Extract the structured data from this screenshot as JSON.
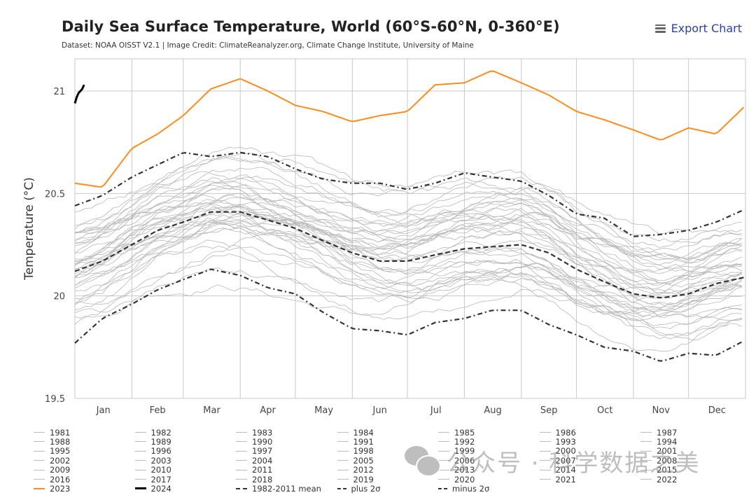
{
  "header": {
    "title": "Daily Sea Surface Temperature, World (60°S-60°N, 0-360°E)",
    "subtitle": "Dataset: NOAA OISST V2.1 | Image Credit: ClimateReanalyzer.org, Climate Change Institute, University of Maine",
    "export_label": "Export Chart",
    "export_icon": "menu-icon"
  },
  "watermark": {
    "icon": "wechat-icon",
    "text": "公众号 · 科学数据之美"
  },
  "chart_data": {
    "type": "line",
    "title": "Daily Sea Surface Temperature, World (60°S-60°N, 0-360°E)",
    "xlabel": "",
    "ylabel": "Temperature (°C)",
    "ylim": [
      19.5,
      21.15
    ],
    "yticks": [
      19.5,
      20,
      20.5,
      21
    ],
    "ytick_labels": [
      "19.5",
      "20",
      "20.5",
      "21"
    ],
    "xlim": [
      1,
      366
    ],
    "month_labels": [
      "Jan",
      "Feb",
      "Mar",
      "Apr",
      "May",
      "Jun",
      "Jul",
      "Aug",
      "Sep",
      "Oct",
      "Nov",
      "Dec"
    ],
    "month_start_days": [
      1,
      32,
      60,
      91,
      121,
      152,
      182,
      213,
      244,
      274,
      305,
      335,
      366
    ],
    "grid": true,
    "legend_position": "bottom",
    "sample_days": [
      1,
      16,
      32,
      46,
      60,
      75,
      91,
      106,
      121,
      136,
      152,
      167,
      182,
      197,
      213,
      228,
      244,
      259,
      274,
      289,
      305,
      320,
      335,
      350,
      365
    ],
    "highlight_series": [
      {
        "name": "2023",
        "color": "#ff8c1a",
        "style": "solid",
        "values": [
          20.55,
          20.53,
          20.72,
          20.79,
          20.88,
          21.01,
          21.06,
          21.0,
          20.93,
          20.9,
          20.85,
          20.88,
          20.9,
          21.03,
          21.04,
          21.1,
          21.04,
          20.98,
          20.9,
          20.86,
          20.81,
          20.76,
          20.82,
          20.79,
          20.92
        ]
      },
      {
        "name": "2024",
        "color": "#000000",
        "style": "solid",
        "days": [
          1,
          2,
          3,
          4,
          5,
          6
        ],
        "values": [
          20.94,
          20.97,
          20.99,
          21.0,
          21.01,
          21.03
        ]
      },
      {
        "name": "1982-2011 mean",
        "color": "#333333",
        "style": "dashed",
        "values": [
          20.12,
          20.17,
          20.25,
          20.32,
          20.36,
          20.41,
          20.41,
          20.37,
          20.33,
          20.27,
          20.21,
          20.17,
          20.17,
          20.2,
          20.23,
          20.24,
          20.25,
          20.21,
          20.13,
          20.07,
          20.01,
          19.99,
          20.01,
          20.06,
          20.09
        ]
      },
      {
        "name": "plus 2σ",
        "color": "#333333",
        "style": "dashdot",
        "values": [
          20.44,
          20.49,
          20.58,
          20.64,
          20.7,
          20.68,
          20.7,
          20.68,
          20.62,
          20.57,
          20.55,
          20.55,
          20.52,
          20.55,
          20.6,
          20.58,
          20.56,
          20.49,
          20.4,
          20.38,
          20.29,
          20.3,
          20.32,
          20.36,
          20.42
        ]
      },
      {
        "name": "minus 2σ",
        "color": "#333333",
        "style": "dashdot",
        "values": [
          19.77,
          19.89,
          19.96,
          20.03,
          20.08,
          20.13,
          20.1,
          20.04,
          20.01,
          19.92,
          19.84,
          19.83,
          19.81,
          19.87,
          19.89,
          19.93,
          19.93,
          19.86,
          19.81,
          19.75,
          19.73,
          19.68,
          19.72,
          19.71,
          19.78
        ]
      }
    ],
    "background_series": {
      "color": "#b8b8b8",
      "style": "solid",
      "years": [
        1981,
        1982,
        1983,
        1984,
        1985,
        1986,
        1987,
        1988,
        1989,
        1990,
        1991,
        1992,
        1993,
        1994,
        1995,
        1996,
        1997,
        1998,
        1999,
        2000,
        2001,
        2002,
        2003,
        2004,
        2005,
        2006,
        2007,
        2008,
        2009,
        2010,
        2011,
        2012,
        2013,
        2014,
        2015,
        2016,
        2017,
        2018,
        2019,
        2020,
        2021,
        2022
      ],
      "approx_anomaly_vs_mean": [
        -0.2,
        -0.18,
        -0.08,
        -0.2,
        -0.22,
        -0.15,
        0.0,
        -0.05,
        -0.12,
        -0.04,
        -0.06,
        -0.1,
        -0.07,
        -0.06,
        0.0,
        -0.04,
        0.08,
        0.1,
        -0.02,
        -0.02,
        0.06,
        0.08,
        0.08,
        0.06,
        0.08,
        0.06,
        0.02,
        0.02,
        0.1,
        0.16,
        0.04,
        0.1,
        0.1,
        0.16,
        0.24,
        0.3,
        0.22,
        0.18,
        0.26,
        0.24,
        0.18,
        0.2
      ]
    }
  },
  "legend": {
    "items": [
      {
        "label": "1981",
        "type": "year"
      },
      {
        "label": "1982",
        "type": "year"
      },
      {
        "label": "1983",
        "type": "year"
      },
      {
        "label": "1984",
        "type": "year"
      },
      {
        "label": "1985",
        "type": "year"
      },
      {
        "label": "1986",
        "type": "year"
      },
      {
        "label": "1987",
        "type": "year"
      },
      {
        "label": "1988",
        "type": "year"
      },
      {
        "label": "1989",
        "type": "year"
      },
      {
        "label": "1990",
        "type": "year"
      },
      {
        "label": "1991",
        "type": "year"
      },
      {
        "label": "1992",
        "type": "year"
      },
      {
        "label": "1993",
        "type": "year"
      },
      {
        "label": "1994",
        "type": "year"
      },
      {
        "label": "1995",
        "type": "year"
      },
      {
        "label": "1996",
        "type": "year"
      },
      {
        "label": "1997",
        "type": "year"
      },
      {
        "label": "1998",
        "type": "year"
      },
      {
        "label": "1999",
        "type": "year"
      },
      {
        "label": "2000",
        "type": "year"
      },
      {
        "label": "2001",
        "type": "year"
      },
      {
        "label": "2002",
        "type": "year"
      },
      {
        "label": "2003",
        "type": "year"
      },
      {
        "label": "2004",
        "type": "year"
      },
      {
        "label": "2005",
        "type": "year"
      },
      {
        "label": "2006",
        "type": "year"
      },
      {
        "label": "2007",
        "type": "year"
      },
      {
        "label": "2008",
        "type": "year"
      },
      {
        "label": "2009",
        "type": "year"
      },
      {
        "label": "2010",
        "type": "year"
      },
      {
        "label": "2011",
        "type": "year"
      },
      {
        "label": "2012",
        "type": "year"
      },
      {
        "label": "2013",
        "type": "year"
      },
      {
        "label": "2014",
        "type": "year"
      },
      {
        "label": "2015",
        "type": "year"
      },
      {
        "label": "2016",
        "type": "year"
      },
      {
        "label": "2017",
        "type": "year"
      },
      {
        "label": "2018",
        "type": "year"
      },
      {
        "label": "2019",
        "type": "year"
      },
      {
        "label": "2020",
        "type": "year"
      },
      {
        "label": "2021",
        "type": "year"
      },
      {
        "label": "2022",
        "type": "year"
      },
      {
        "label": "2023",
        "type": "y2023"
      },
      {
        "label": "2024",
        "type": "y2024"
      },
      {
        "label": "1982-2011 mean",
        "type": "mean"
      },
      {
        "label": "plus 2σ",
        "type": "sigma"
      },
      {
        "label": "minus 2σ",
        "type": "sigma"
      }
    ]
  }
}
